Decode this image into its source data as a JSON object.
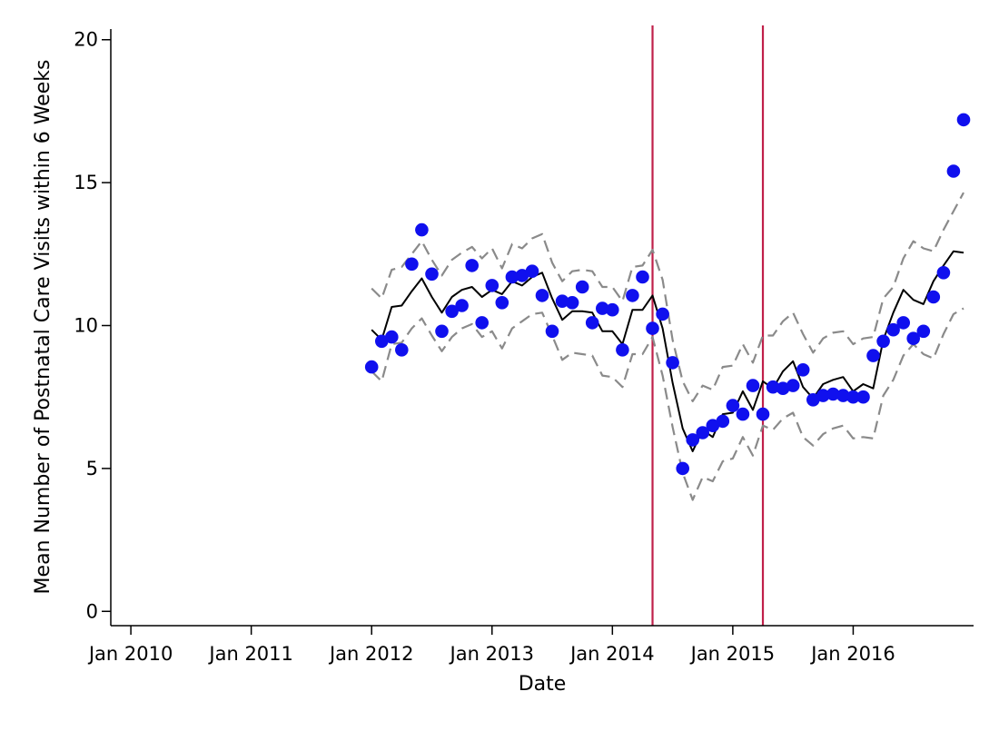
{
  "chart_data": {
    "type": "scatter",
    "title": "",
    "xlabel": "Date",
    "ylabel": "Mean Number of Postnatal Care Visits within 6 Weeks",
    "x_ticks": [
      "Jan 2010",
      "Jan 2011",
      "Jan 2012",
      "Jan 2013",
      "Jan 2014",
      "Jan 2015",
      "Jan 2016"
    ],
    "y_ticks": [
      "0",
      "5",
      "10",
      "15",
      "20"
    ],
    "xlim": [
      "2009-11",
      "2017-01"
    ],
    "ylim": [
      -0.5,
      20.5
    ],
    "grid": false,
    "legend": "none",
    "vertical_lines": [
      {
        "x": "2014-05",
        "color": "#c0204a"
      },
      {
        "x": "2015-04",
        "color": "#c0204a"
      }
    ],
    "series": [
      {
        "kind": "points",
        "color": "#1010ee",
        "x": [
          "2012-01",
          "2012-02",
          "2012-03",
          "2012-04",
          "2012-05",
          "2012-06",
          "2012-07",
          "2012-08",
          "2012-09",
          "2012-10",
          "2012-11",
          "2012-12",
          "2013-01",
          "2013-02",
          "2013-03",
          "2013-04",
          "2013-05",
          "2013-06",
          "2013-07",
          "2013-08",
          "2013-09",
          "2013-10",
          "2013-11",
          "2013-12",
          "2014-01",
          "2014-02",
          "2014-03",
          "2014-04",
          "2014-05",
          "2014-06",
          "2014-07",
          "2014-08",
          "2014-09",
          "2014-10",
          "2014-11",
          "2014-12",
          "2015-01",
          "2015-02",
          "2015-03",
          "2015-04",
          "2015-05",
          "2015-06",
          "2015-07",
          "2015-08",
          "2015-09",
          "2015-10",
          "2015-11",
          "2015-12",
          "2016-01",
          "2016-02",
          "2016-03",
          "2016-04",
          "2016-05",
          "2016-06",
          "2016-07",
          "2016-08",
          "2016-09",
          "2016-10",
          "2016-11",
          "2016-12"
        ],
        "y": [
          8.55,
          9.45,
          9.6,
          9.15,
          12.15,
          13.35,
          11.8,
          9.8,
          10.5,
          10.7,
          12.1,
          10.1,
          11.4,
          10.8,
          11.7,
          11.75,
          11.9,
          11.05,
          9.8,
          10.85,
          10.8,
          11.35,
          10.1,
          10.6,
          10.55,
          9.15,
          11.05,
          11.7,
          9.9,
          10.4,
          8.7,
          5.0,
          6.0,
          6.25,
          6.5,
          6.65,
          7.2,
          6.9,
          7.9,
          6.9,
          7.85,
          7.8,
          7.9,
          8.45,
          7.4,
          7.55,
          7.6,
          7.55,
          7.5,
          7.5,
          8.95,
          9.45,
          9.85,
          10.1,
          9.55,
          9.8,
          11.0,
          11.85,
          15.4,
          17.2
        ]
      },
      {
        "kind": "line",
        "color": "#000000",
        "x": [
          "2012-01",
          "2012-02",
          "2012-03",
          "2012-04",
          "2012-05",
          "2012-06",
          "2012-07",
          "2012-08",
          "2012-09",
          "2012-10",
          "2012-11",
          "2012-12",
          "2013-01",
          "2013-02",
          "2013-03",
          "2013-04",
          "2013-05",
          "2013-06",
          "2013-07",
          "2013-08",
          "2013-09",
          "2013-10",
          "2013-11",
          "2013-12",
          "2014-01",
          "2014-02",
          "2014-03",
          "2014-04",
          "2014-05",
          "2014-06",
          "2014-07",
          "2014-08",
          "2014-09",
          "2014-10",
          "2014-11",
          "2014-12",
          "2015-01",
          "2015-02",
          "2015-03",
          "2015-04",
          "2015-05",
          "2015-06",
          "2015-07",
          "2015-08",
          "2015-09",
          "2015-10",
          "2015-11",
          "2015-12",
          "2016-01",
          "2016-02",
          "2016-03",
          "2016-04",
          "2016-05",
          "2016-06",
          "2016-07",
          "2016-08",
          "2016-09",
          "2016-10",
          "2016-11",
          "2016-12"
        ],
        "y": [
          9.85,
          9.5,
          10.65,
          10.7,
          11.2,
          11.65,
          11.0,
          10.45,
          11.0,
          11.25,
          11.35,
          11.0,
          11.25,
          11.1,
          11.55,
          11.4,
          11.7,
          11.85,
          10.95,
          10.2,
          10.5,
          10.5,
          10.45,
          9.8,
          9.8,
          9.35,
          10.55,
          10.55,
          11.05,
          9.9,
          8.0,
          6.4,
          5.6,
          6.35,
          6.1,
          6.9,
          6.95,
          7.7,
          7.05,
          8.05,
          7.8,
          8.4,
          8.75,
          7.85,
          7.45,
          7.95,
          8.1,
          8.2,
          7.7,
          7.95,
          7.8,
          9.5,
          10.45,
          11.25,
          10.9,
          10.75,
          11.55,
          12.1,
          12.6,
          12.55
        ]
      },
      {
        "kind": "line",
        "color": "#8a8a8a",
        "dashed": true,
        "x": [
          "2012-01",
          "2012-02",
          "2012-03",
          "2012-04",
          "2012-05",
          "2012-06",
          "2012-07",
          "2012-08",
          "2012-09",
          "2012-10",
          "2012-11",
          "2012-12",
          "2013-01",
          "2013-02",
          "2013-03",
          "2013-04",
          "2013-05",
          "2013-06",
          "2013-07",
          "2013-08",
          "2013-09",
          "2013-10",
          "2013-11",
          "2013-12",
          "2014-01",
          "2014-02",
          "2014-03",
          "2014-04",
          "2014-05",
          "2014-06",
          "2014-07",
          "2014-08",
          "2014-09",
          "2014-10",
          "2014-11",
          "2014-12",
          "2015-01",
          "2015-02",
          "2015-03",
          "2015-04",
          "2015-05",
          "2015-06",
          "2015-07",
          "2015-08",
          "2015-09",
          "2015-10",
          "2015-11",
          "2015-12",
          "2016-01",
          "2016-02",
          "2016-03",
          "2016-04",
          "2016-05",
          "2016-06",
          "2016-07",
          "2016-08",
          "2016-09",
          "2016-10",
          "2016-11",
          "2016-12"
        ],
        "y": [
          11.3,
          10.95,
          11.95,
          12.05,
          12.5,
          12.95,
          12.3,
          11.75,
          12.3,
          12.55,
          12.75,
          12.35,
          12.7,
          12.0,
          12.85,
          12.7,
          13.05,
          13.2,
          12.2,
          11.55,
          11.9,
          11.95,
          11.9,
          11.35,
          11.35,
          10.85,
          12.05,
          12.1,
          12.65,
          11.6,
          9.5,
          8.05,
          7.35,
          7.9,
          7.75,
          8.55,
          8.6,
          9.35,
          8.7,
          9.65,
          9.65,
          10.15,
          10.45,
          9.7,
          9.05,
          9.55,
          9.75,
          9.8,
          9.35,
          9.55,
          9.6,
          10.95,
          11.35,
          12.35,
          12.95,
          12.7,
          12.6,
          13.35,
          14.0,
          14.65
        ]
      },
      {
        "kind": "line",
        "color": "#8a8a8a",
        "dashed": true,
        "x": [
          "2012-01",
          "2012-02",
          "2012-03",
          "2012-04",
          "2012-05",
          "2012-06",
          "2012-07",
          "2012-08",
          "2012-09",
          "2012-10",
          "2012-11",
          "2012-12",
          "2013-01",
          "2013-02",
          "2013-03",
          "2013-04",
          "2013-05",
          "2013-06",
          "2013-07",
          "2013-08",
          "2013-09",
          "2013-10",
          "2013-11",
          "2013-12",
          "2014-01",
          "2014-02",
          "2014-03",
          "2014-04",
          "2014-05",
          "2014-06",
          "2014-07",
          "2014-08",
          "2014-09",
          "2014-10",
          "2014-11",
          "2014-12",
          "2015-01",
          "2015-02",
          "2015-03",
          "2015-04",
          "2015-05",
          "2015-06",
          "2015-07",
          "2015-08",
          "2015-09",
          "2015-10",
          "2015-11",
          "2015-12",
          "2016-01",
          "2016-02",
          "2016-03",
          "2016-04",
          "2016-05",
          "2016-06",
          "2016-07",
          "2016-08",
          "2016-09",
          "2016-10",
          "2016-11",
          "2016-12"
        ],
        "y": [
          8.4,
          8.05,
          9.35,
          9.4,
          9.9,
          10.25,
          9.65,
          9.1,
          9.6,
          9.9,
          10.05,
          9.6,
          9.8,
          9.2,
          9.9,
          10.15,
          10.4,
          10.45,
          9.65,
          8.8,
          9.05,
          9.0,
          8.95,
          8.25,
          8.2,
          7.85,
          9.0,
          9.0,
          9.6,
          8.25,
          6.45,
          4.85,
          3.9,
          4.7,
          4.55,
          5.25,
          5.35,
          6.1,
          5.45,
          6.5,
          6.35,
          6.75,
          6.95,
          6.1,
          5.8,
          6.2,
          6.4,
          6.5,
          6.05,
          6.1,
          6.05,
          7.55,
          8.1,
          8.95,
          9.35,
          9.0,
          8.85,
          9.7,
          10.4,
          10.6
        ]
      }
    ]
  }
}
